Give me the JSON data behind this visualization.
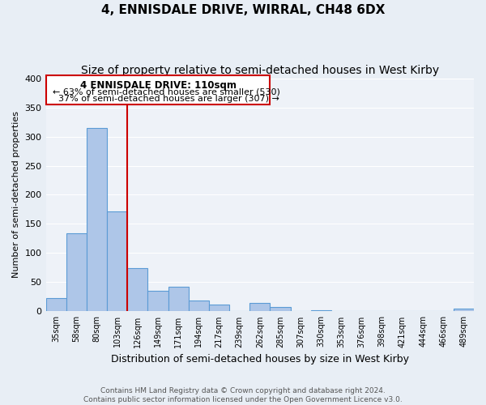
{
  "title": "4, ENNISDALE DRIVE, WIRRAL, CH48 6DX",
  "subtitle": "Size of property relative to semi-detached houses in West Kirby",
  "xlabel": "Distribution of semi-detached houses by size in West Kirby",
  "ylabel": "Number of semi-detached properties",
  "bin_labels": [
    "35sqm",
    "58sqm",
    "80sqm",
    "103sqm",
    "126sqm",
    "149sqm",
    "171sqm",
    "194sqm",
    "217sqm",
    "239sqm",
    "262sqm",
    "285sqm",
    "307sqm",
    "330sqm",
    "353sqm",
    "376sqm",
    "398sqm",
    "421sqm",
    "444sqm",
    "466sqm",
    "489sqm"
  ],
  "bar_values": [
    23,
    134,
    315,
    171,
    74,
    36,
    42,
    19,
    12,
    0,
    15,
    7,
    1,
    2,
    0,
    0,
    0,
    0,
    0,
    0,
    5
  ],
  "bar_color": "#aec6e8",
  "bar_edge_color": "#5b9bd5",
  "red_line_x": 3.5,
  "property_label": "4 ENNISDALE DRIVE: 110sqm",
  "smaller_pct": "63% of semi-detached houses are smaller (530)",
  "larger_pct": "37% of semi-detached houses are larger (307)",
  "annotation_box_color": "#ffffff",
  "annotation_box_edge": "#cc0000",
  "ylim": [
    0,
    400
  ],
  "yticks": [
    0,
    50,
    100,
    150,
    200,
    250,
    300,
    350,
    400
  ],
  "bg_color": "#e8eef5",
  "plot_bg_color": "#eef2f8",
  "footer_line1": "Contains HM Land Registry data © Crown copyright and database right 2024.",
  "footer_line2": "Contains public sector information licensed under the Open Government Licence v3.0.",
  "grid_color": "#ffffff",
  "title_fontsize": 11,
  "subtitle_fontsize": 10
}
